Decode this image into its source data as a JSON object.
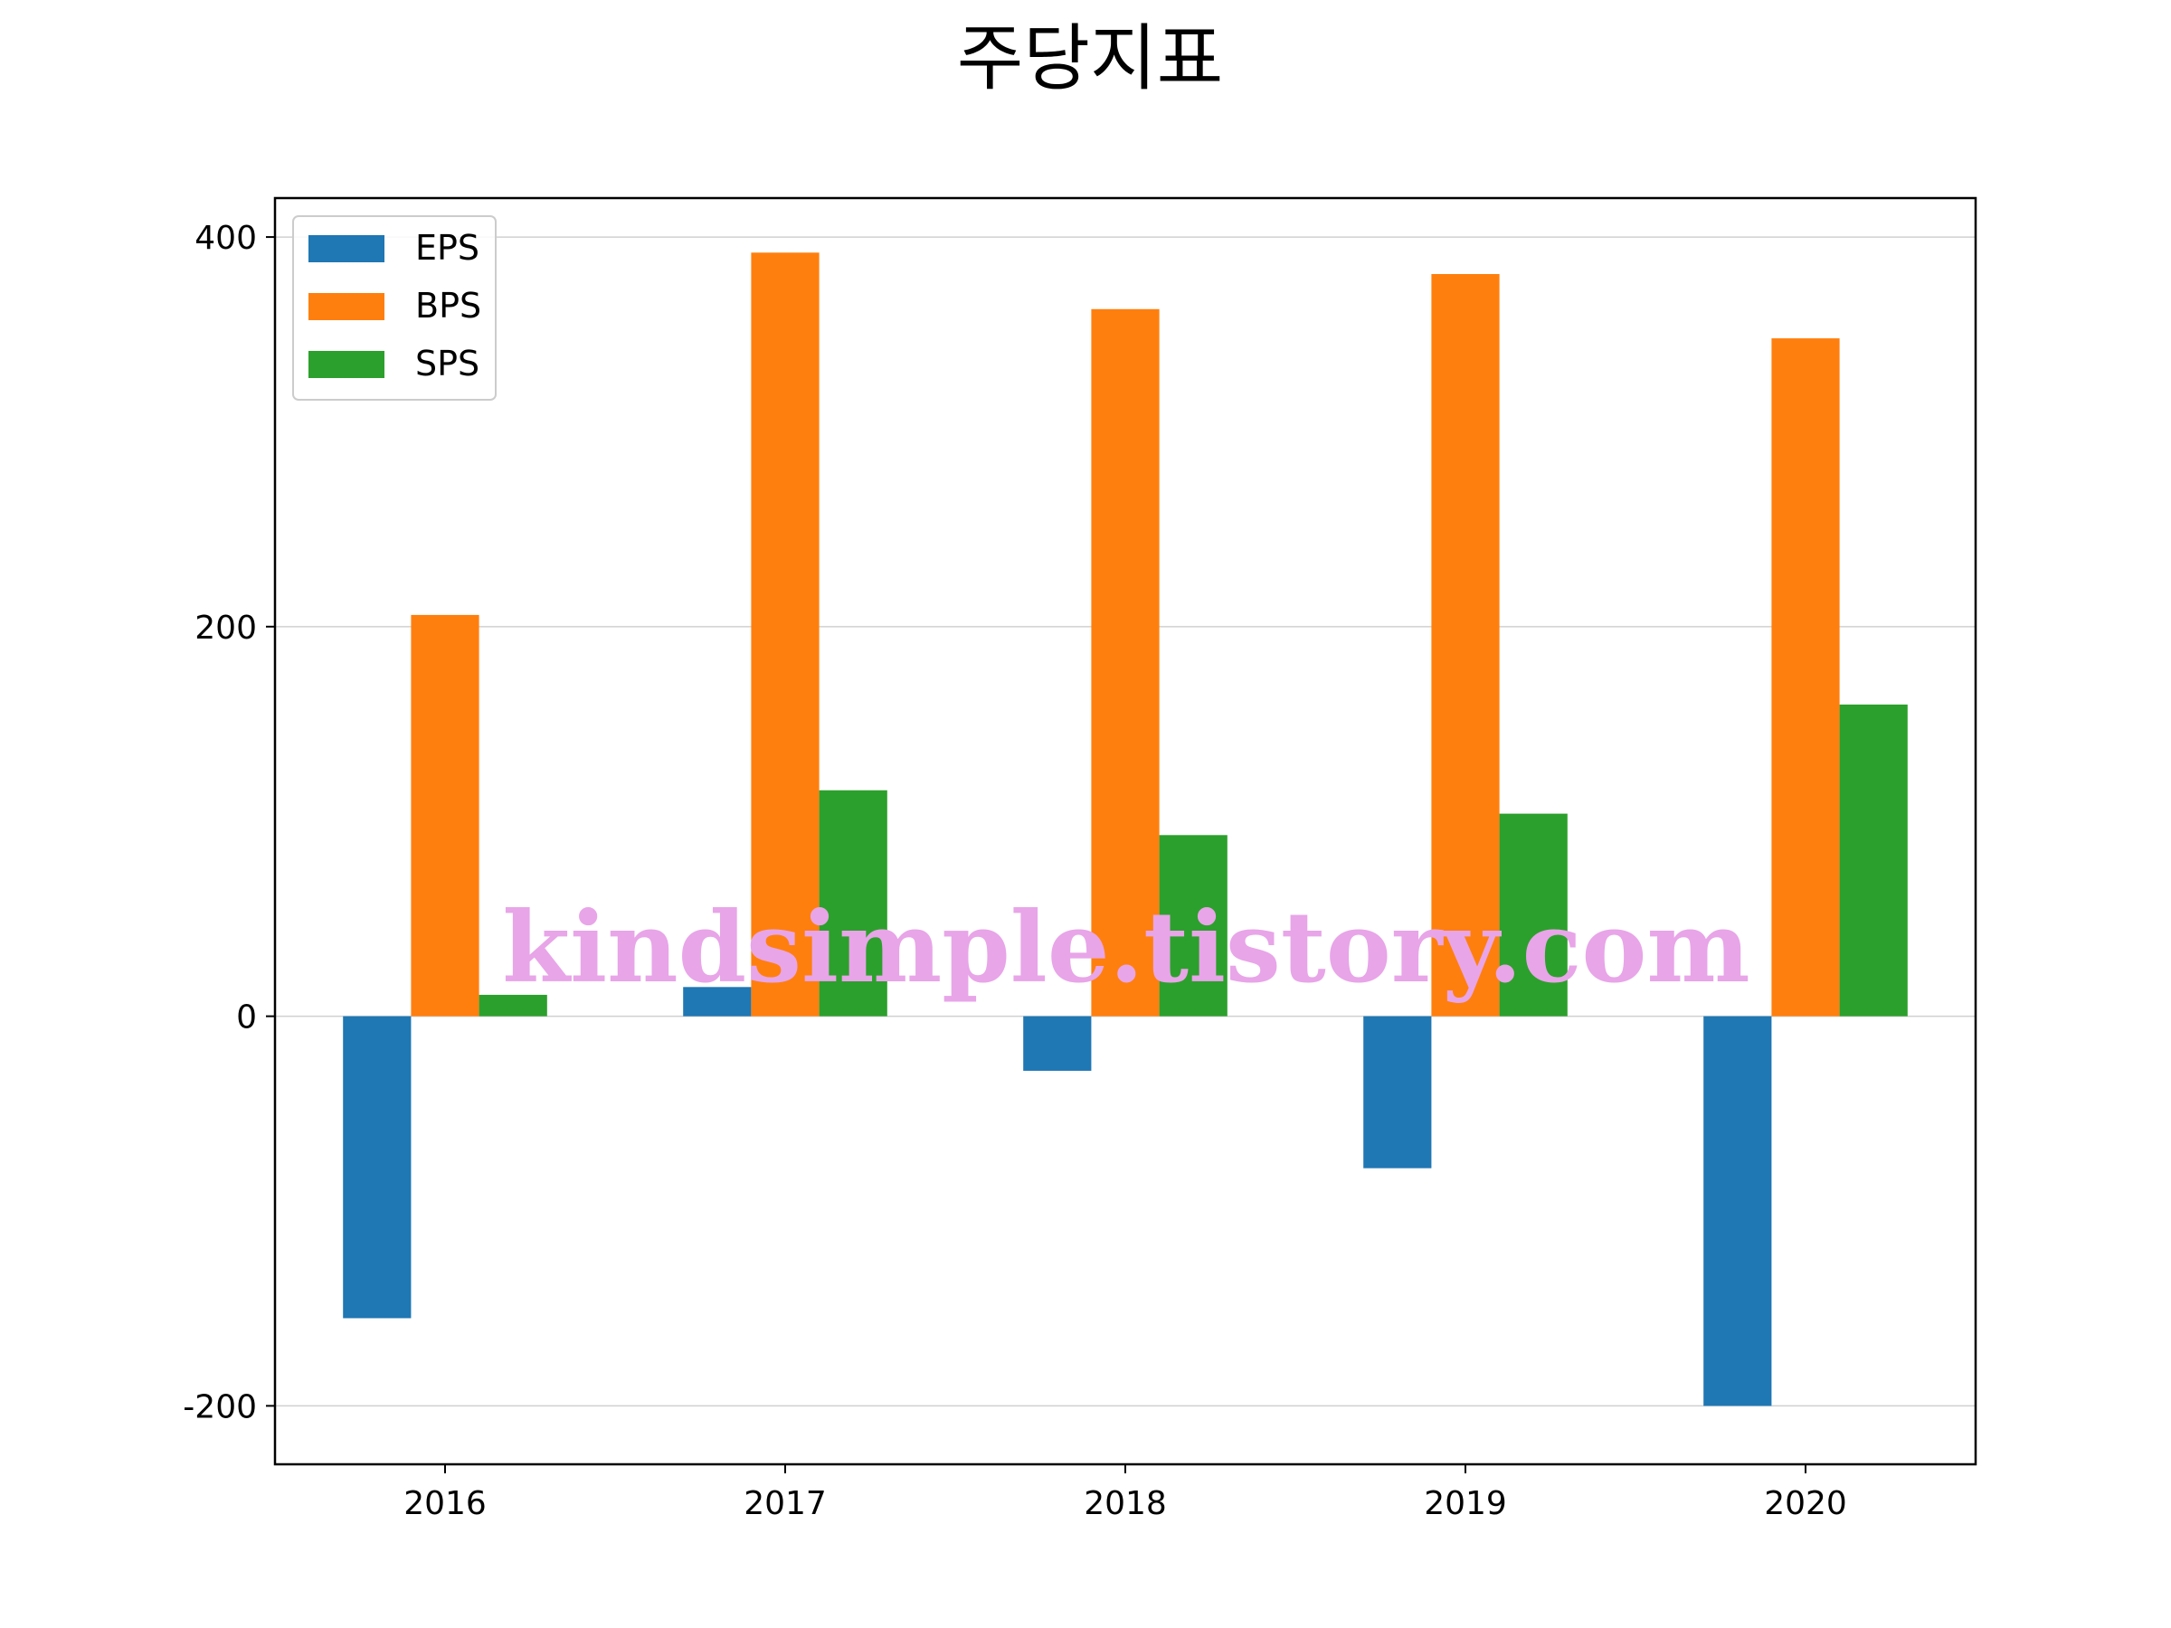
{
  "chart_data": {
    "type": "bar",
    "title": "주당지표",
    "categories": [
      "2016",
      "2017",
      "2018",
      "2019",
      "2020"
    ],
    "series": [
      {
        "name": "EPS",
        "color": "#1f77b4",
        "values": [
          -155,
          15,
          -28,
          -78,
          -200
        ]
      },
      {
        "name": "BPS",
        "color": "#ff7f0e",
        "values": [
          206,
          392,
          363,
          381,
          348
        ]
      },
      {
        "name": "SPS",
        "color": "#2ca02c",
        "values": [
          11,
          116,
          93,
          104,
          160
        ]
      }
    ],
    "ylim": [
      -230,
      420
    ],
    "yticks": [
      -200,
      0,
      200,
      400
    ],
    "ytick_labels": [
      "-200",
      "0",
      "200",
      "400"
    ],
    "xlabel": "",
    "ylabel": "",
    "grid": "y",
    "legend_position": "top-left"
  },
  "watermark": "kindsimple.tistory.com"
}
